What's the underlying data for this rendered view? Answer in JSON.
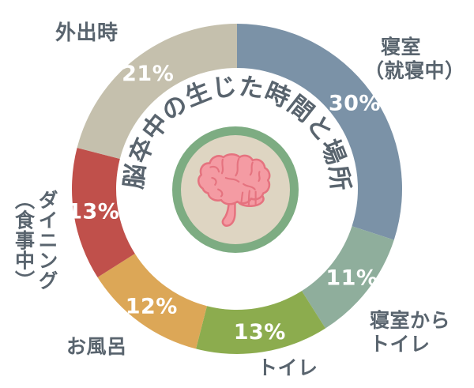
{
  "chart_data": {
    "type": "pie",
    "variant": "donut",
    "title": "脳卒中の生じた時間と場所",
    "start_angle_deg": 0,
    "direction": "clockwise",
    "total": 100,
    "legend_position": "around-outside",
    "segments": [
      {
        "label": "寝室\n（就寝中）",
        "value": 30,
        "display": "30%",
        "color": "#7b92a7"
      },
      {
        "label": "寝室から\nトイレ",
        "value": 11,
        "display": "11%",
        "color": "#8fae9c"
      },
      {
        "label": "トイレ",
        "value": 13,
        "display": "13%",
        "color": "#8cac4e"
      },
      {
        "label": "お風呂",
        "value": 12,
        "display": "12%",
        "color": "#dca757"
      },
      {
        "label": "ダイニング\n（食事中）",
        "value": 13,
        "display": "13%",
        "color": "#c0504b"
      },
      {
        "label": "外出時",
        "value": 21,
        "display": "21%",
        "color": "#c5c0ad"
      }
    ]
  },
  "center": {
    "icon": "brain-icon",
    "ring_color": "#7dac82",
    "inner_color": "#ded5c2",
    "brain_fill": "#f49ba3",
    "brain_stroke": "#e5737f"
  },
  "colors": {
    "background": "#ffffff",
    "label_text": "#59646e",
    "percent_text": "#ffffff",
    "title_text": "#59646e"
  }
}
